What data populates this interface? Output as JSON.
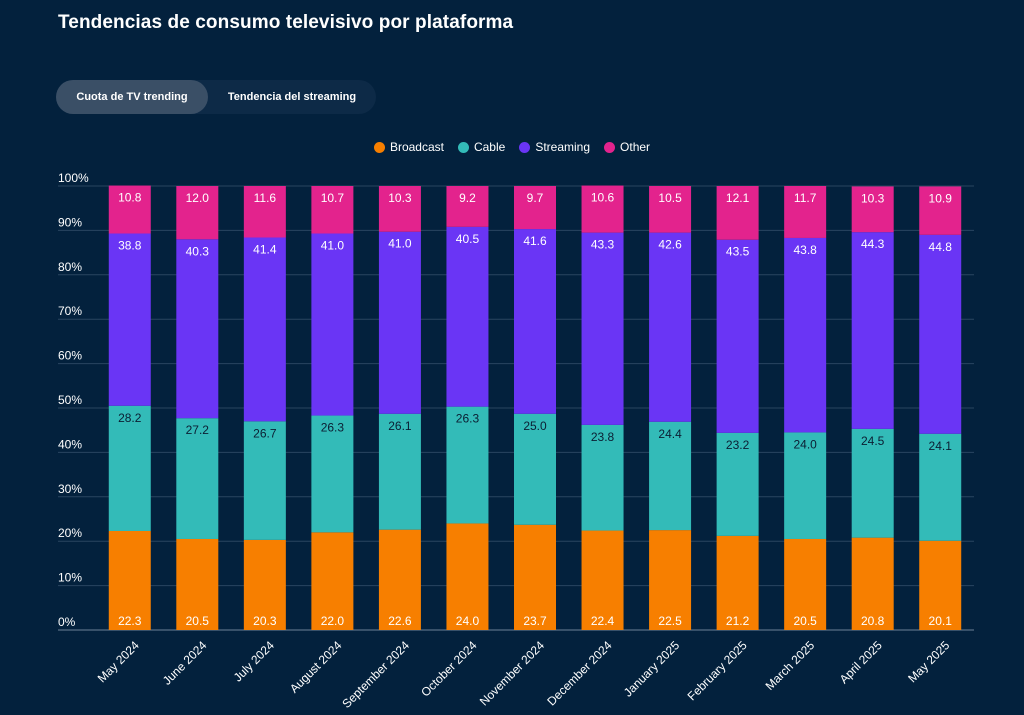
{
  "page": {
    "title": "Tendencias de consumo televisivo por plataforma",
    "tabs": [
      {
        "label": "Cuota de TV trending",
        "active": true
      },
      {
        "label": "Tendencia del streaming",
        "active": false
      }
    ]
  },
  "chart_data": {
    "type": "bar",
    "stacked": true,
    "categories": [
      "May 2024",
      "June 2024",
      "July 2024",
      "August 2024",
      "September 2024",
      "October 2024",
      "November 2024",
      "December 2024",
      "January 2025",
      "February 2025",
      "March 2025",
      "April 2025",
      "May 2025"
    ],
    "series": [
      {
        "name": "Broadcast",
        "color": "#f77f00",
        "values": [
          22.3,
          20.5,
          20.3,
          22.0,
          22.6,
          24.0,
          23.7,
          22.4,
          22.5,
          21.2,
          20.5,
          20.8,
          20.1
        ]
      },
      {
        "name": "Cable",
        "color": "#33bbb8",
        "values": [
          28.2,
          27.2,
          26.7,
          26.3,
          26.1,
          26.3,
          25.0,
          23.8,
          24.4,
          23.2,
          24.0,
          24.5,
          24.1
        ]
      },
      {
        "name": "Streaming",
        "color": "#6a35f5",
        "values": [
          38.8,
          40.3,
          41.4,
          41.0,
          41.0,
          40.5,
          41.6,
          43.3,
          42.6,
          43.5,
          43.8,
          44.3,
          44.8
        ]
      },
      {
        "name": "Other",
        "color": "#e3238d",
        "values": [
          10.8,
          12.0,
          11.6,
          10.7,
          10.3,
          9.2,
          9.7,
          10.6,
          10.5,
          12.1,
          11.7,
          10.3,
          10.9
        ]
      }
    ],
    "value_labels": [
      [
        "22.3",
        "20.5",
        "20.3",
        "22.0",
        "22.6",
        "24.0",
        "23.7",
        "22.4",
        "22.5",
        "21.2",
        "20.5",
        "20.8",
        "20.1"
      ],
      [
        "28.2",
        "27.2",
        "26.7",
        "26.3",
        "26.1",
        "26.3",
        "25.0",
        "23.8",
        "24.4",
        "23.2",
        "24.0",
        "24.5",
        "24.1"
      ],
      [
        "38.8",
        "40.3",
        "41.4",
        "41.0",
        "41.0",
        "40.5",
        "41.6",
        "43.3",
        "42.6",
        "43.5",
        "43.8",
        "44.3",
        "44.8"
      ],
      [
        "10.8",
        "12.0",
        "11.6",
        "10.7",
        "10.3",
        "9.2",
        "9.7",
        "10.6",
        "10.5",
        "12.1",
        "11.7",
        "10.3",
        "10.9"
      ]
    ],
    "ylim": [
      0,
      100
    ],
    "yticks": [
      "0%",
      "10%",
      "20%",
      "30%",
      "40%",
      "50%",
      "60%",
      "70%",
      "80%",
      "90%",
      "100%"
    ],
    "grid": true,
    "legend_position": "top-center"
  }
}
